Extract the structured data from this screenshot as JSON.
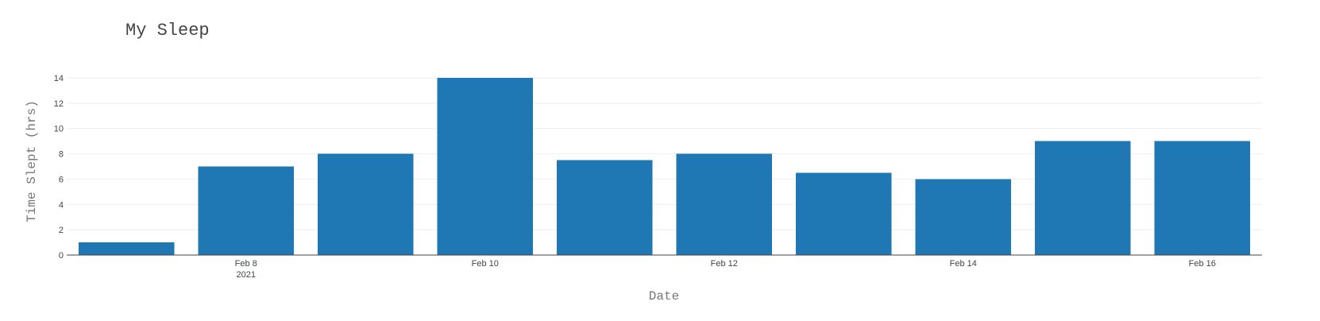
{
  "chart_data": {
    "type": "bar",
    "title": "My Sleep",
    "xlabel": "Date",
    "ylabel": "Time Slept (hrs)",
    "x": [
      "2021-02-07",
      "2021-02-08",
      "2021-02-09",
      "2021-02-10",
      "2021-02-11",
      "2021-02-12",
      "2021-02-13",
      "2021-02-14",
      "2021-02-15",
      "2021-02-16"
    ],
    "values": [
      1,
      7,
      8,
      14,
      7.5,
      8,
      6.5,
      6,
      9,
      9
    ],
    "ylim": [
      0,
      14
    ],
    "yticks": [
      0,
      2,
      4,
      6,
      8,
      10,
      12,
      14
    ],
    "xticks": [
      {
        "date": "2021-02-08",
        "label": "Feb 8",
        "sublabel": "2021"
      },
      {
        "date": "2021-02-10",
        "label": "Feb 10",
        "sublabel": ""
      },
      {
        "date": "2021-02-12",
        "label": "Feb 12",
        "sublabel": ""
      },
      {
        "date": "2021-02-14",
        "label": "Feb 14",
        "sublabel": ""
      },
      {
        "date": "2021-02-16",
        "label": "Feb 16",
        "sublabel": ""
      }
    ],
    "grid": true,
    "legend": false,
    "bar_color": "#1f77b4"
  }
}
